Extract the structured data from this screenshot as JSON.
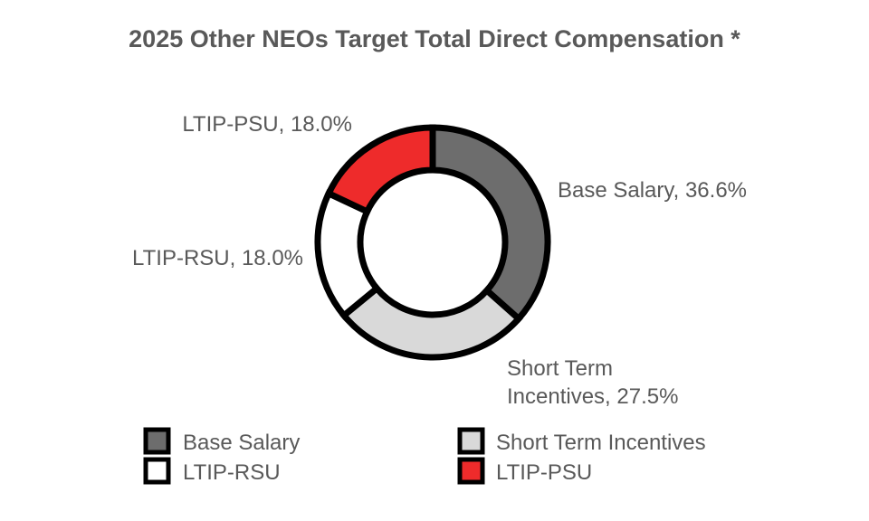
{
  "chart_data": {
    "type": "pie",
    "donut": true,
    "title": "2025 Other NEOs Target Total Direct Compensation *",
    "slices": [
      {
        "name": "Base Salary",
        "value": 36.6,
        "label": "Base Salary, 36.6%",
        "color": "#6d6d6d"
      },
      {
        "name": "Short Term Incentives",
        "value": 27.5,
        "label_lines": [
          "Short Term",
          "Incentives, 27.5%"
        ],
        "color": "#d9d9d9"
      },
      {
        "name": "LTIP-RSU",
        "value": 18.0,
        "label": "LTIP-RSU, 18.0%",
        "color": "#ffffff"
      },
      {
        "name": "LTIP-PSU",
        "value": 18.0,
        "label": "LTIP-PSU, 18.0%",
        "color": "#ee2b2b"
      }
    ],
    "legend": {
      "placement": "bottom",
      "entries": [
        {
          "name": "Base Salary",
          "color": "#6d6d6d"
        },
        {
          "name": "Short Term Incentives",
          "color": "#d9d9d9"
        },
        {
          "name": "LTIP-RSU",
          "color": "#ffffff"
        },
        {
          "name": "LTIP-PSU",
          "color": "#ee2b2b"
        }
      ]
    },
    "outline_color": "#000000"
  }
}
